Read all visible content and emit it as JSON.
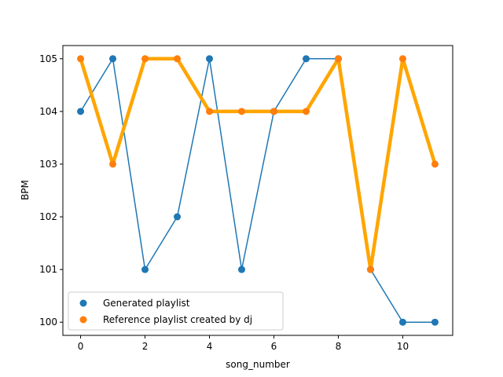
{
  "chart_data": {
    "type": "line",
    "xlabel": "song_number",
    "ylabel": "BPM",
    "xlim": [
      -0.55,
      11.55
    ],
    "ylim": [
      99.75,
      105.25
    ],
    "x_ticks": [
      0,
      2,
      4,
      6,
      8,
      10
    ],
    "y_ticks": [
      100,
      101,
      102,
      103,
      104,
      105
    ],
    "grid": false,
    "legend_position": "lower-left",
    "x": [
      0,
      1,
      2,
      3,
      4,
      5,
      6,
      7,
      8,
      9,
      10,
      11
    ],
    "series": [
      {
        "name": "Generated playlist",
        "color": "#1f77b4",
        "marker": "circle",
        "values": [
          104,
          105,
          101,
          102,
          105,
          101,
          104,
          105,
          105,
          101,
          100,
          100
        ]
      },
      {
        "name": "Reference playlist created by dj",
        "color": "#ff7f0e",
        "line_color": "#ffa500",
        "marker": "circle",
        "values": [
          105,
          103,
          105,
          105,
          104,
          104,
          104,
          104,
          105,
          101,
          105,
          103
        ]
      }
    ]
  }
}
